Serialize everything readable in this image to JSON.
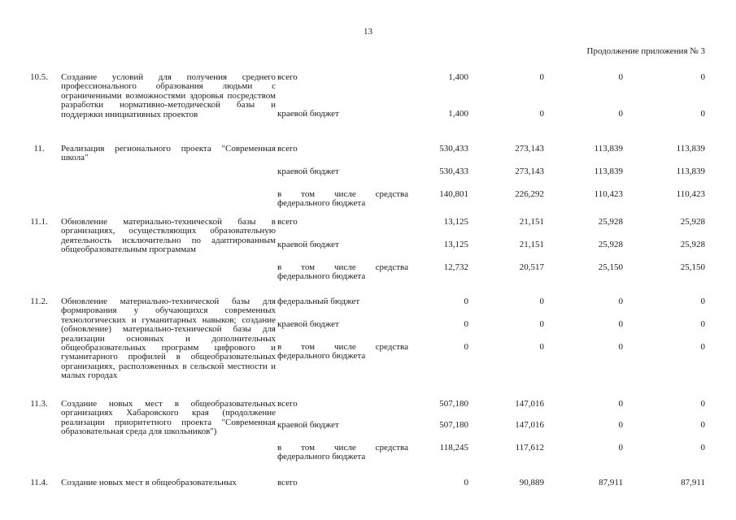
{
  "page": {
    "number": "13",
    "continuation": "Продолжение приложения № 3"
  },
  "table": {
    "rows": [
      {
        "num": "10.5.",
        "description": "Создание условий для получения среднего профессионального образования людьми с ограниченными возможностями здоровья посредством разработки нормативно-методической базы и поддержки инициативных проектов",
        "lines": [
          {
            "label": "всего",
            "values": [
              "1,400",
              "0",
              "0",
              "0"
            ]
          },
          {
            "label": "краевой бюджет",
            "values": [
              "1,400",
              "0",
              "0",
              "0"
            ]
          }
        ]
      },
      {
        "num": "11.",
        "description": "Реализация регионального проекта \"Современная школа\"",
        "lines": [
          {
            "label": "всего",
            "values": [
              "530,433",
              "273,143",
              "113,839",
              "113,839"
            ]
          },
          {
            "label": "краевой бюджет",
            "values": [
              "530,433",
              "273,143",
              "113,839",
              "113,839"
            ]
          },
          {
            "label": "в том числе средства федерального бюджета",
            "values": [
              "140,801",
              "226,292",
              "110,423",
              "110,423"
            ]
          }
        ]
      },
      {
        "num": "11.1.",
        "description": "Обновление материально-технической базы в организациях, осуществляющих образовательную деятельность исключительно по адаптированным общеобразовательным программам",
        "lines": [
          {
            "label": "всего",
            "values": [
              "13,125",
              "21,151",
              "25,928",
              "25,928"
            ]
          },
          {
            "label": "краевой бюджет",
            "values": [
              "13,125",
              "21,151",
              "25,928",
              "25,928"
            ]
          },
          {
            "label": "в том числе средства федерального бюджета",
            "values": [
              "12,732",
              "20,517",
              "25,150",
              "25,150"
            ]
          }
        ]
      },
      {
        "num": "11.2.",
        "description": "Обновление материально-технической базы для формирования у обучающихся современных технологических и гуманитарных навыков; создание (обновление) материально-технической базы для реализации основных и дополнительных общеобразовательных программ цифрового и гуманитарного профилей в общеобразовательных организациях, расположенных в сельской местности и малых городах",
        "lines": [
          {
            "label": "федеральный бюджет",
            "values": [
              "0",
              "0",
              "0",
              "0"
            ]
          },
          {
            "label": "краевой бюджет",
            "values": [
              "0",
              "0",
              "0",
              "0"
            ]
          },
          {
            "label": "в том числе средства федерального бюджета",
            "values": [
              "0",
              "0",
              "0",
              "0"
            ]
          }
        ]
      },
      {
        "num": "11.3.",
        "description": "Создание новых мест в общеобразовательных организациях Хабаровского края (продолжение реализации приоритетного проекта \"Современная образовательная среда для школьников\")",
        "lines": [
          {
            "label": "всего",
            "values": [
              "507,180",
              "147,016",
              "0",
              "0"
            ]
          },
          {
            "label": "краевой бюджет",
            "values": [
              "507,180",
              "147,016",
              "0",
              "0"
            ]
          },
          {
            "label": "в том числе средства федерального бюджета",
            "values": [
              "118,245",
              "117,612",
              "0",
              "0"
            ]
          }
        ]
      },
      {
        "num": "11.4.",
        "description": "Создание новых мест в общеобразовательных",
        "lines": [
          {
            "label": "всего",
            "values": [
              "0",
              "90,889",
              "87,911",
              "87,911"
            ]
          }
        ]
      }
    ]
  }
}
